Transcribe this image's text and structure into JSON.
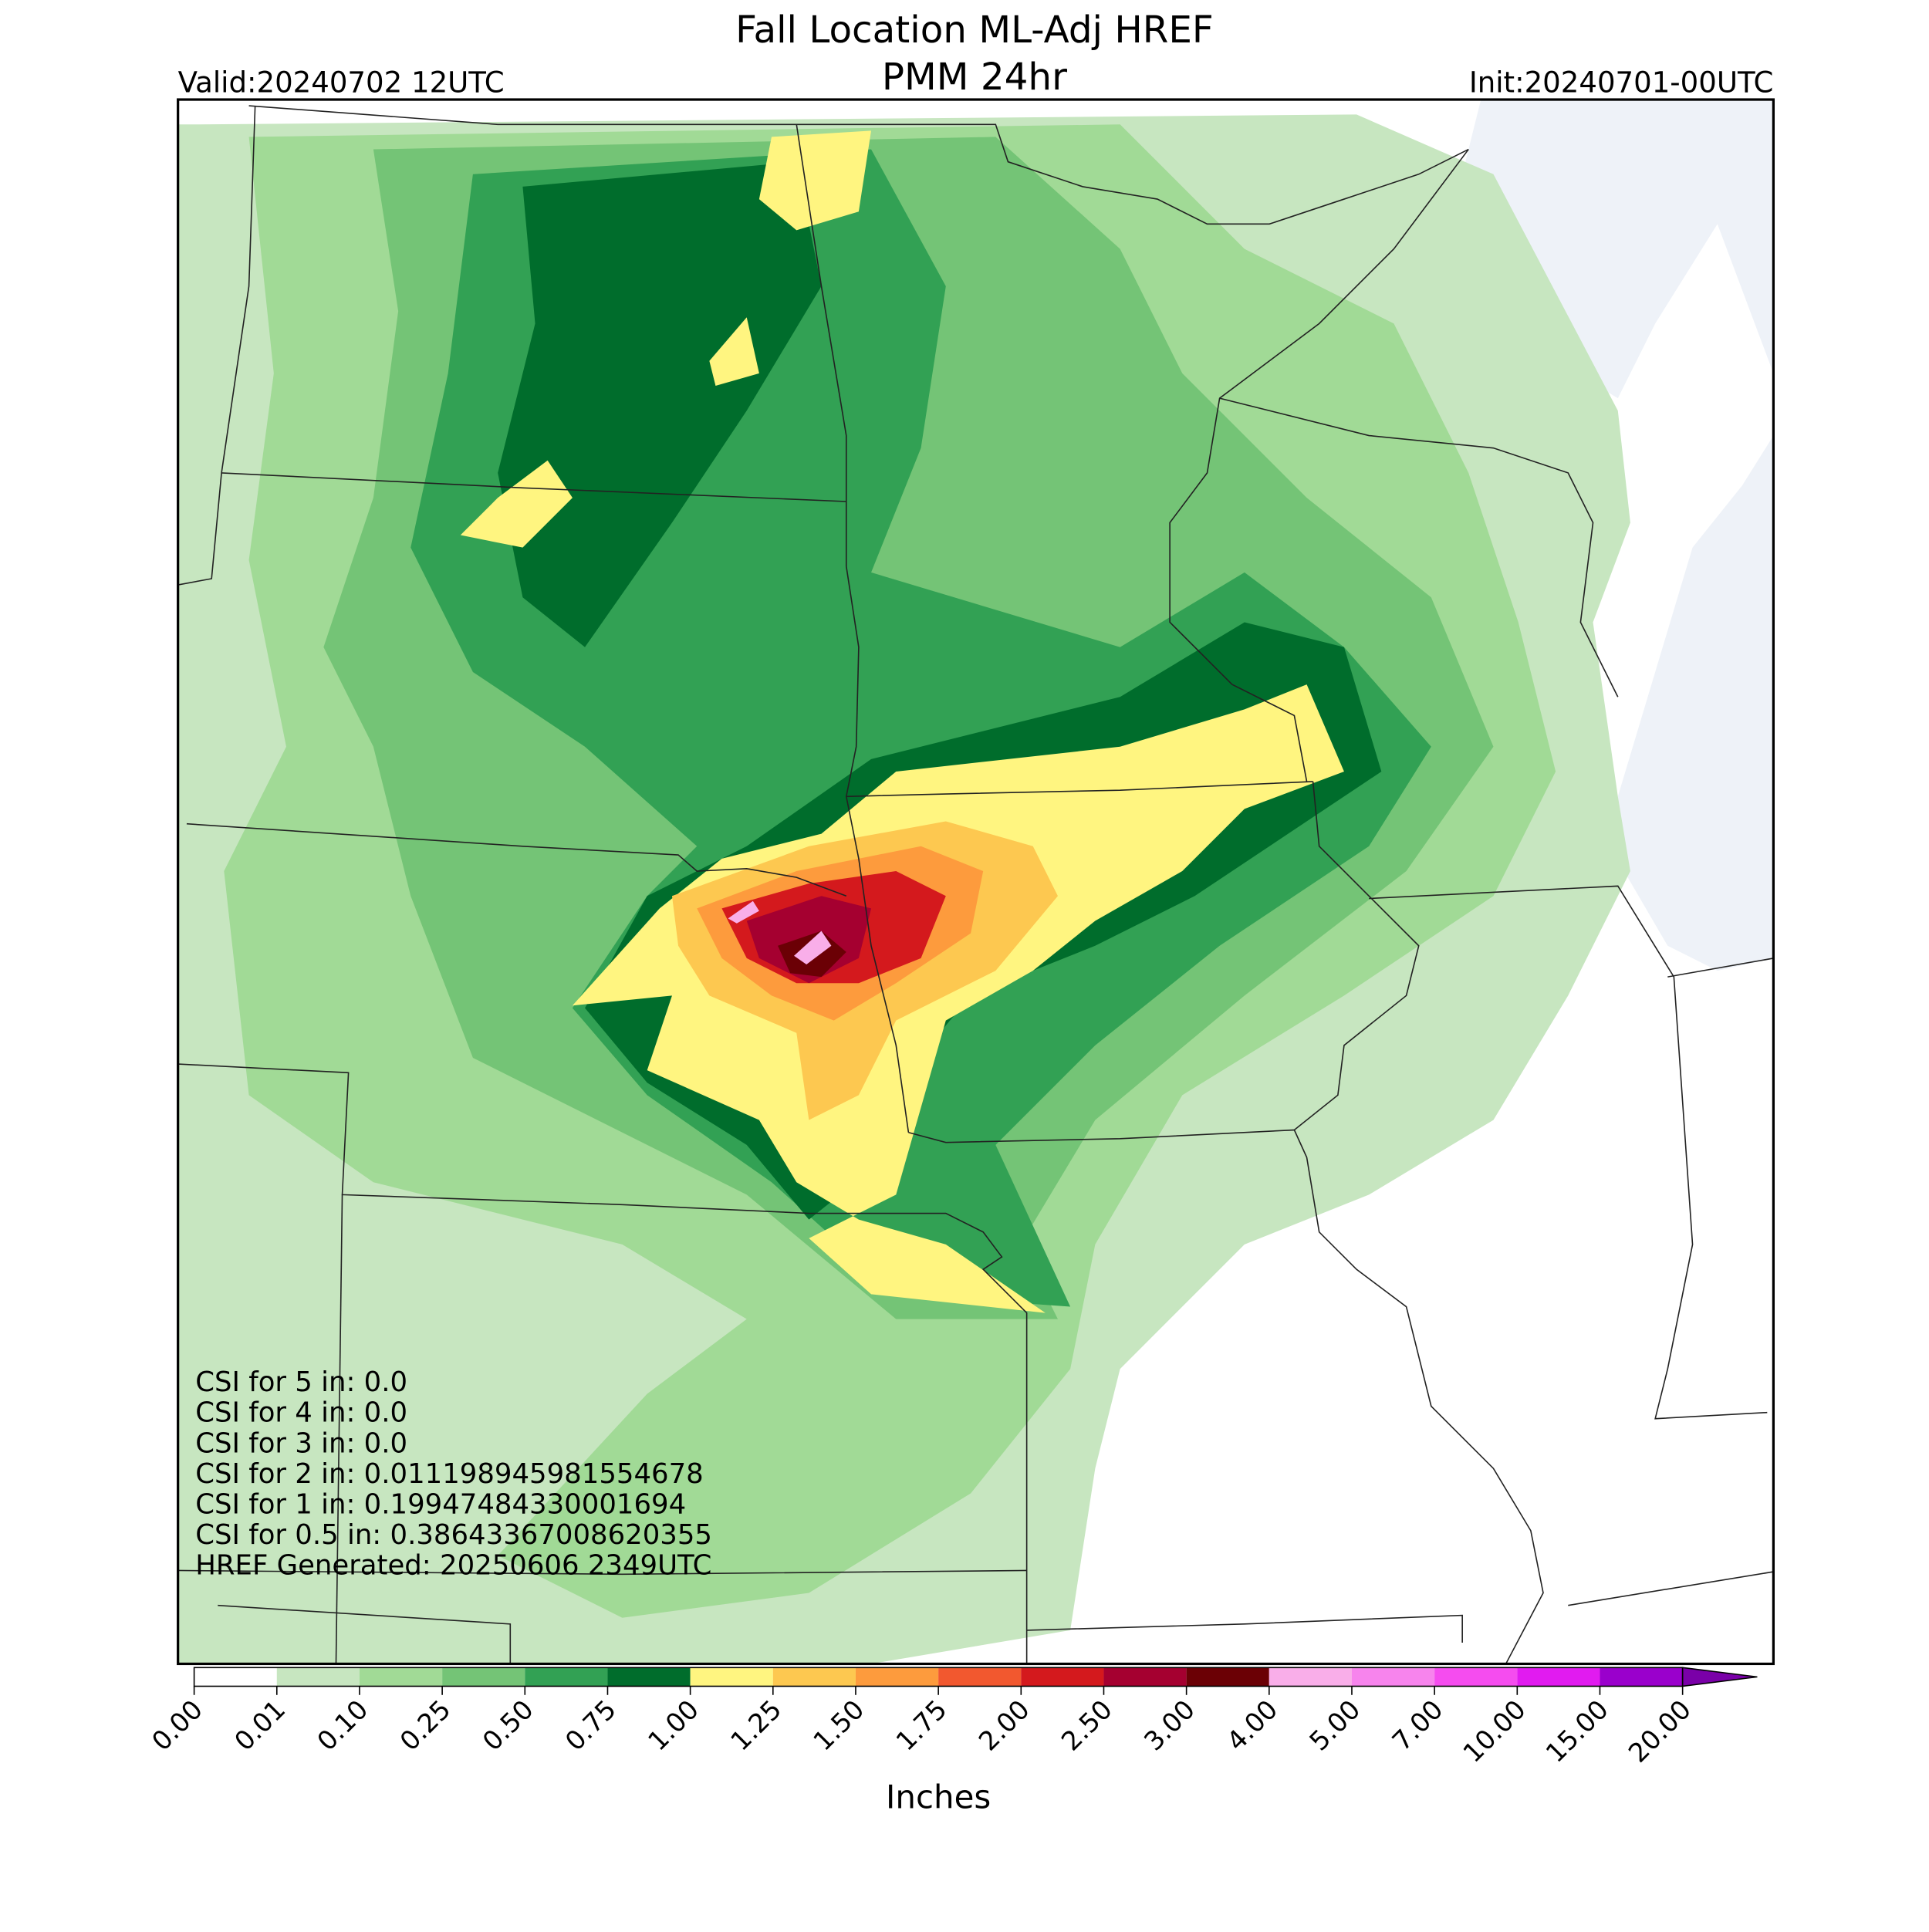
{
  "chart_data": {
    "type": "map",
    "title": "Fall Location ML-Adj HREF",
    "subtitle": "PMM 24hr",
    "valid": "Valid:20240702 12UTC",
    "init": "Init:20240701-00UTC",
    "annotations": [
      "CSI for 5 in: 0.0",
      "CSI for 4 in: 0.0",
      "CSI for 3 in: 0.0",
      "CSI for 2 in: 0.011198945981554678",
      "CSI for 1 in: 0.19947484330001694",
      "CSI for 0.5 in: 0.38643367008620355",
      "HREF Generated: 20250606 2349UTC"
    ],
    "colorbar": {
      "label": "Inches",
      "ticks": [
        {
          "value": 0,
          "label": "0.00"
        },
        {
          "value": 0.01,
          "label": "0.01"
        },
        {
          "value": 0.1,
          "label": "0.10"
        },
        {
          "value": 0.25,
          "label": "0.25"
        },
        {
          "value": 0.5,
          "label": "0.50"
        },
        {
          "value": 0.75,
          "label": "0.75"
        },
        {
          "value": 1,
          "label": "1.00"
        },
        {
          "value": 1.25,
          "label": "1.25"
        },
        {
          "value": 1.5,
          "label": "1.50"
        },
        {
          "value": 1.75,
          "label": "1.75"
        },
        {
          "value": 2,
          "label": "2.00"
        },
        {
          "value": 2.5,
          "label": "2.50"
        },
        {
          "value": 3,
          "label": "3.00"
        },
        {
          "value": 4,
          "label": "4.00"
        },
        {
          "value": 5,
          "label": "5.00"
        },
        {
          "value": 7,
          "label": "7.00"
        },
        {
          "value": 10,
          "label": "10.00"
        },
        {
          "value": 15,
          "label": "15.00"
        },
        {
          "value": 20,
          "label": "20.00"
        }
      ],
      "colors": [
        "#ffffff",
        "#c7e6c0",
        "#a1da96",
        "#74c476",
        "#32a154",
        "#006d2c",
        "#fff580",
        "#fdc850",
        "#fd9b3d",
        "#f2582f",
        "#d4191d",
        "#a50030",
        "#6b0005",
        "#f9aee9",
        "#f784ed",
        "#f54cef",
        "#e11bf0",
        "#9a00cc"
      ],
      "over_color": "#7a00a8"
    }
  }
}
